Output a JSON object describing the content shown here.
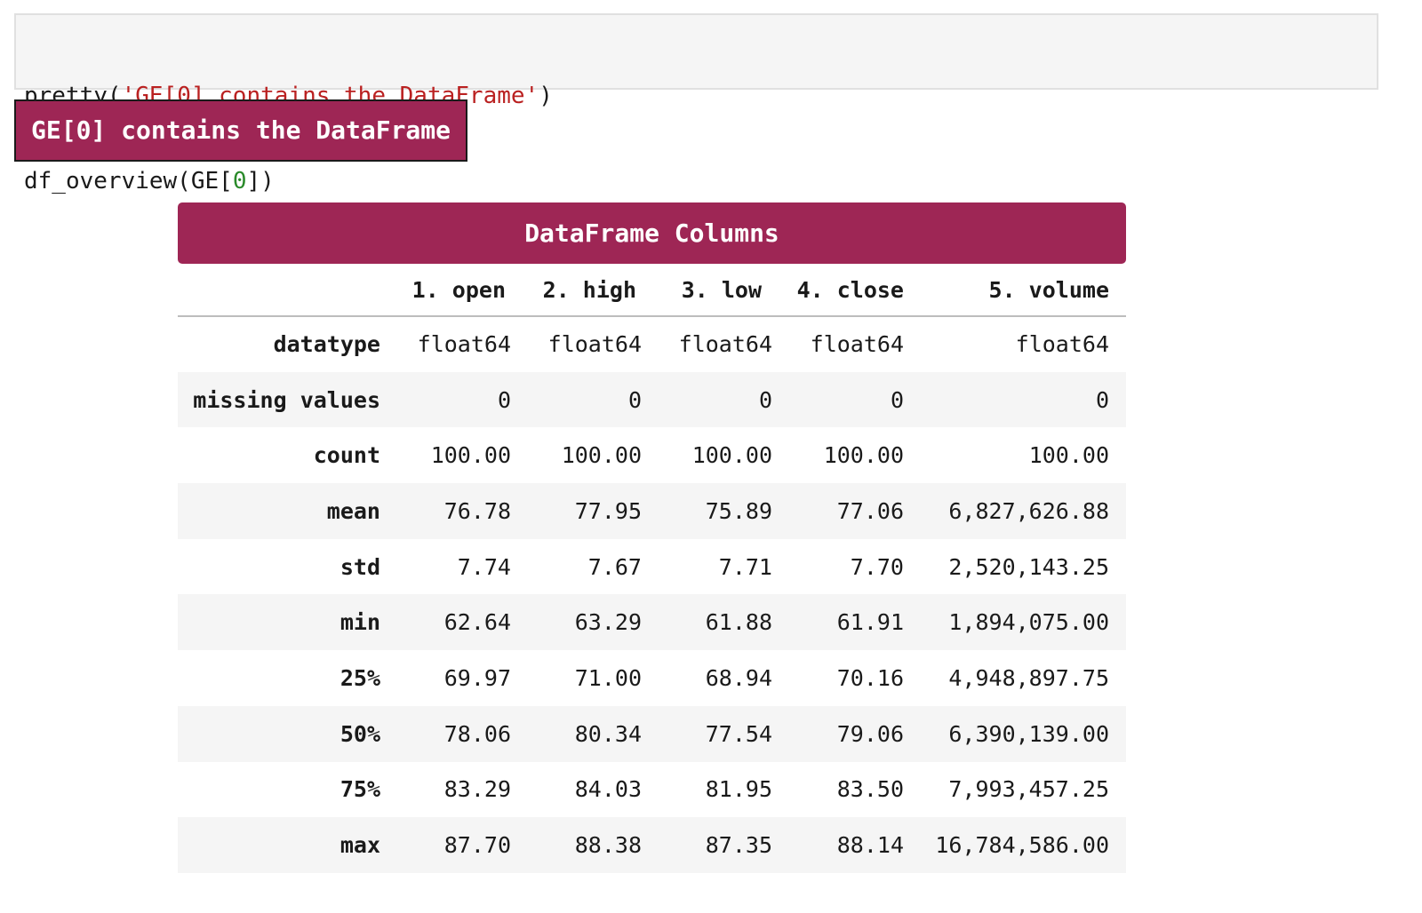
{
  "code_cell": {
    "line1": {
      "fn": "pretty(",
      "string": "'GE[0] contains the DataFrame'",
      "close": ")"
    },
    "line2": {
      "prefix": "df_overview(GE[",
      "number": "0",
      "suffix": "])"
    }
  },
  "output": {
    "banner_text": "GE[0] contains the DataFrame",
    "overview": {
      "title": "DataFrame Columns",
      "columns": [
        "1. open",
        "2. high",
        "3. low",
        "4. close",
        "5. volume"
      ],
      "rows": [
        {
          "label": "datatype",
          "values": [
            "float64",
            "float64",
            "float64",
            "float64",
            "float64"
          ]
        },
        {
          "label": "missing values",
          "values": [
            "0",
            "0",
            "0",
            "0",
            "0"
          ]
        },
        {
          "label": "count",
          "values": [
            "100.00",
            "100.00",
            "100.00",
            "100.00",
            "100.00"
          ]
        },
        {
          "label": "mean",
          "values": [
            "76.78",
            "77.95",
            "75.89",
            "77.06",
            "6,827,626.88"
          ]
        },
        {
          "label": "std",
          "values": [
            "7.74",
            "7.67",
            "7.71",
            "7.70",
            "2,520,143.25"
          ]
        },
        {
          "label": "min",
          "values": [
            "62.64",
            "63.29",
            "61.88",
            "61.91",
            "1,894,075.00"
          ]
        },
        {
          "label": "25%",
          "values": [
            "69.97",
            "71.00",
            "68.94",
            "70.16",
            "4,948,897.75"
          ]
        },
        {
          "label": "50%",
          "values": [
            "78.06",
            "80.34",
            "77.54",
            "79.06",
            "6,390,139.00"
          ]
        },
        {
          "label": "75%",
          "values": [
            "83.29",
            "84.03",
            "81.95",
            "83.50",
            "7,993,457.25"
          ]
        },
        {
          "label": "max",
          "values": [
            "87.70",
            "88.38",
            "87.35",
            "88.14",
            "16,784,586.00"
          ]
        }
      ]
    }
  },
  "colors": {
    "accent": "#9e2655",
    "code_background": "#f5f5f5",
    "string_token": "#ba2121",
    "number_token": "#2a8a2a",
    "striped_row": "#f5f5f5"
  }
}
